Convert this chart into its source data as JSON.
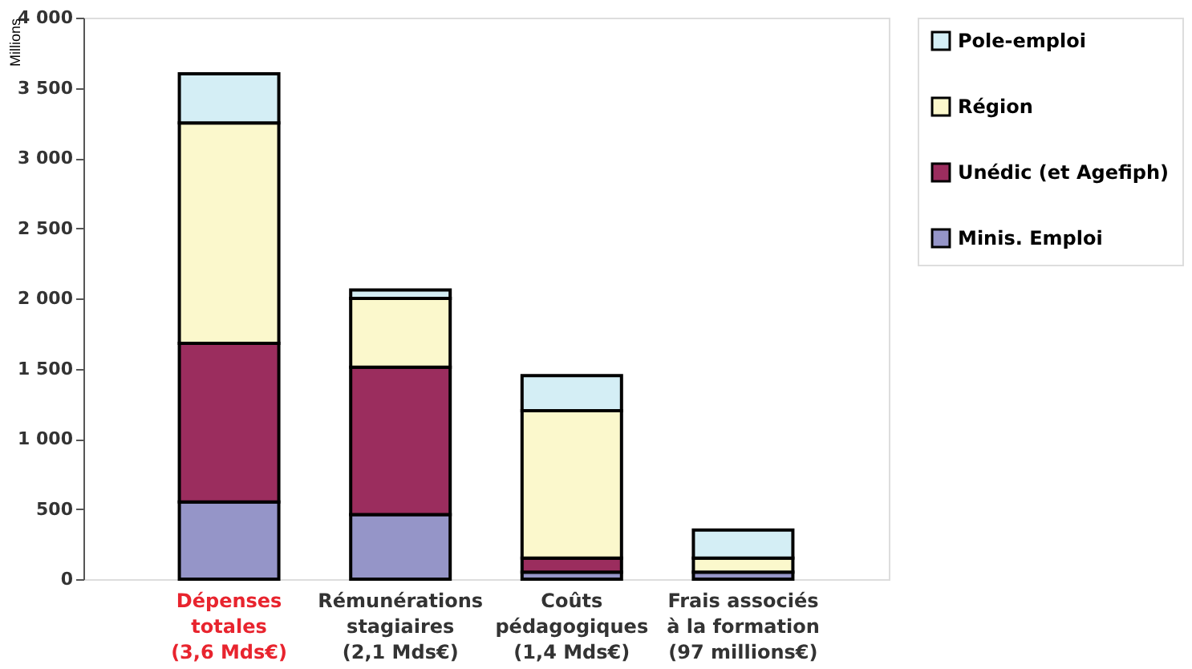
{
  "chart_data": {
    "type": "bar",
    "stacked": true,
    "categories": [
      "Dépenses\ntotales\n(3,6 Mds€)",
      "Rémunérations\nstagiaires\n(2,1 Mds€)",
      "Coûts\npédagogiques\n(1,4 Mds€)",
      "Frais associés\nà la formation\n(97 millions€)"
    ],
    "ylabel": "Millions",
    "series": [
      {
        "name": "Minis. Emploi",
        "color": "#9595c8",
        "values": [
          550,
          460,
          50,
          50
        ]
      },
      {
        "name": "Unédic (et Agefiph)",
        "color": "#9b2d5e",
        "values": [
          1130,
          1050,
          100,
          null
        ]
      },
      {
        "name": "Région",
        "color": "#fbf8cc",
        "values": [
          1570,
          490,
          1050,
          100
        ]
      },
      {
        "name": "Pole-emploi",
        "color": "#d4eef5",
        "values": [
          350,
          60,
          250,
          200
        ]
      }
    ],
    "ylim": [
      0,
      4000
    ],
    "yticks": [
      0,
      500,
      {
        "value": 1000,
        "label": "1 000"
      },
      {
        "value": 1500,
        "label": "1 500"
      },
      {
        "value": 2000,
        "label": "2 000"
      },
      {
        "value": 2500,
        "label": "2 500"
      },
      {
        "value": 3000,
        "label": "3 000"
      },
      {
        "value": 3500,
        "label": "3 500"
      },
      {
        "value": 4000,
        "label": "4 000"
      }
    ],
    "grid": false,
    "legend": "right"
  }
}
